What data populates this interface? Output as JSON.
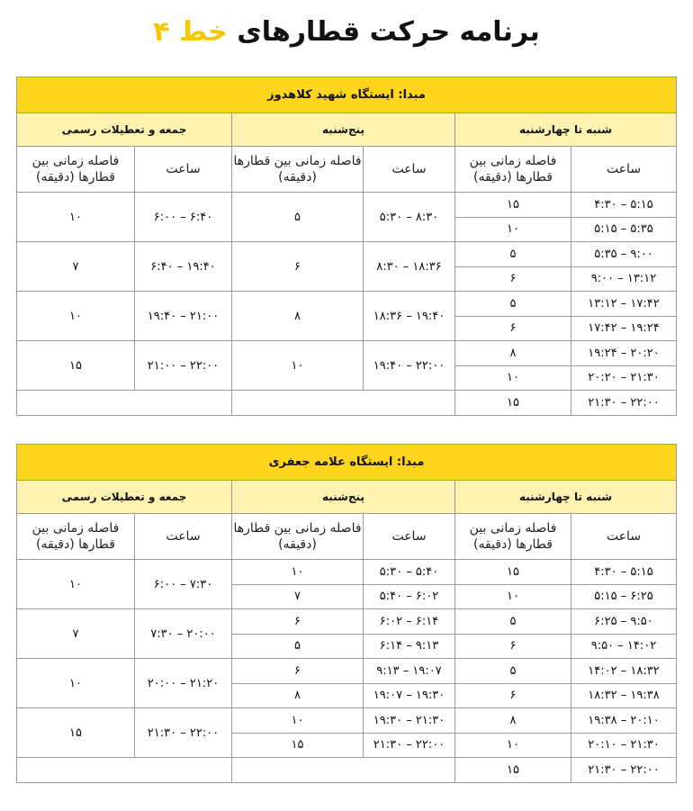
{
  "title": {
    "main": "برنامه حرکت قطارهای",
    "highlight": "خط ۴"
  },
  "colors": {
    "accent": "#fcd51c",
    "subheader": "#fdf2b0"
  },
  "columns": {
    "time": "ساعت",
    "interval": "فاصله زمانی بین قطارها (دقیقه)"
  },
  "tables": [
    {
      "origin": "مبدا: ایستگاه شهید کلاهدوز",
      "days": [
        {
          "label": "شنبه تا چهارشنبه",
          "entries": [
            {
              "time": "۴:۳۰ – ۵:۱۵",
              "interval": "۱۵"
            },
            {
              "time": "۵:۱۵ – ۵:۳۵",
              "interval": "۱۰"
            },
            {
              "time": "۵:۳۵ – ۹:۰۰",
              "interval": "۵"
            },
            {
              "time": "۹:۰۰ – ۱۳:۱۲",
              "interval": "۶"
            },
            {
              "time": "۱۳:۱۲ – ۱۷:۴۲",
              "interval": "۵"
            },
            {
              "time": "۱۷:۴۲ – ۱۹:۲۴",
              "interval": "۶"
            },
            {
              "time": "۱۹:۲۴ – ۲۰:۲۰",
              "interval": "۸"
            },
            {
              "time": "۲۰:۲۰ – ۲۱:۳۰",
              "interval": "۱۰"
            },
            {
              "time": "۲۱:۳۰ – ۲۲:۰۰",
              "interval": "۱۵"
            }
          ]
        },
        {
          "label": "پنج‌شنبه",
          "entries": [
            {
              "time": "۵:۳۰ – ۸:۳۰",
              "interval": "۵"
            },
            {
              "time": "۸:۳۰ – ۱۸:۳۶",
              "interval": "۶"
            },
            {
              "time": "۱۸:۳۶ – ۱۹:۴۰",
              "interval": "۸"
            },
            {
              "time": "۱۹:۴۰ – ۲۲:۰۰",
              "interval": "۱۰"
            }
          ]
        },
        {
          "label": "جمعه و تعطیلات رسمی",
          "entries": [
            {
              "time": "۶:۰۰ – ۶:۴۰",
              "interval": "۱۰"
            },
            {
              "time": "۶:۴۰ – ۱۹:۴۰",
              "interval": "۷"
            },
            {
              "time": "۱۹:۴۰ – ۲۱:۰۰",
              "interval": "۱۰"
            },
            {
              "time": "۲۱:۰۰ – ۲۲:۰۰",
              "interval": "۱۵"
            }
          ]
        }
      ]
    },
    {
      "origin": "مبدا: ایستگاه علامه جعفری",
      "days": [
        {
          "label": "شنبه تا چهارشنبه",
          "entries": [
            {
              "time": "۴:۳۰ – ۵:۱۵",
              "interval": "۱۵"
            },
            {
              "time": "۵:۱۵ – ۶:۲۵",
              "interval": "۱۰"
            },
            {
              "time": "۶:۲۵ – ۹:۵۰",
              "interval": "۵"
            },
            {
              "time": "۹:۵۰ – ۱۴:۰۲",
              "interval": "۶"
            },
            {
              "time": "۱۴:۰۲ – ۱۸:۳۲",
              "interval": "۵"
            },
            {
              "time": "۱۸:۳۲ – ۱۹:۳۸",
              "interval": "۶"
            },
            {
              "time": "۱۹:۳۸ – ۲۰:۱۰",
              "interval": "۸"
            },
            {
              "time": "۲۰:۱۰ – ۲۱:۳۰",
              "interval": "۱۰"
            },
            {
              "time": "۲۱:۳۰ – ۲۲:۰۰",
              "interval": "۱۵"
            }
          ]
        },
        {
          "label": "پنج‌شنبه",
          "entries": [
            {
              "time": "۵:۳۰ – ۵:۴۰",
              "interval": "۱۰"
            },
            {
              "time": "۵:۴۰ – ۶:۰۲",
              "interval": "۷"
            },
            {
              "time": "۶:۰۲ – ۶:۱۴",
              "interval": "۶"
            },
            {
              "time": "۶:۱۴ – ۹:۱۳",
              "interval": "۵"
            },
            {
              "time": "۹:۱۳ – ۱۹:۰۷",
              "interval": "۶"
            },
            {
              "time": "۱۹:۰۷ – ۱۹:۳۰",
              "interval": "۸"
            },
            {
              "time": "۱۹:۳۰ – ۲۱:۳۰",
              "interval": "۱۰"
            },
            {
              "time": "۲۱:۳۰ – ۲۲:۰۰",
              "interval": "۱۵"
            }
          ]
        },
        {
          "label": "جمعه و تعطیلات رسمی",
          "entries": [
            {
              "time": "۶:۰۰ – ۷:۳۰",
              "interval": "۱۰"
            },
            {
              "time": "۷:۳۰ – ۲۰:۰۰",
              "interval": "۷"
            },
            {
              "time": "۲۰:۰۰ – ۲۱:۲۰",
              "interval": "۱۰"
            },
            {
              "time": "۲۱:۳۰ – ۲۲:۰۰",
              "interval": "۱۵"
            }
          ]
        }
      ]
    }
  ]
}
